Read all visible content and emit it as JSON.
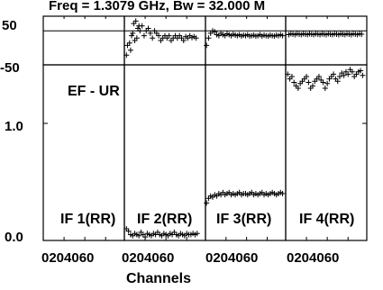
{
  "chart_data": {
    "type": "scatter",
    "title": "Freq = 1.3079 GHz, Bw = 32.000 M",
    "xlabel": "Channels",
    "top_panel": {
      "ylim": [
        -50,
        50
      ],
      "yticks": [
        "50",
        "-50"
      ],
      "reference_line": 20
    },
    "bottom_panel": {
      "label": "EF - UR",
      "ylim": [
        0.0,
        1.5
      ],
      "yticks": [
        "1.0",
        "0.0"
      ]
    },
    "xlim": [
      0,
      78
    ],
    "xtick_label": "0204060",
    "panels": [
      {
        "name": "IF 1(RR)",
        "phase": [],
        "amp": []
      },
      {
        "name": "IF 2(RR)",
        "phase": [
          [
            2,
            -30
          ],
          [
            5,
            -5
          ],
          [
            7,
            10
          ],
          [
            9,
            35
          ],
          [
            11,
            40
          ],
          [
            13,
            25
          ],
          [
            15,
            20
          ],
          [
            17,
            30
          ],
          [
            19,
            10
          ],
          [
            21,
            20
          ],
          [
            23,
            25
          ],
          [
            25,
            15
          ],
          [
            27,
            5
          ],
          [
            29,
            20
          ],
          [
            31,
            15
          ],
          [
            33,
            10
          ],
          [
            35,
            0
          ],
          [
            37,
            5
          ],
          [
            39,
            10
          ],
          [
            41,
            5
          ],
          [
            43,
            10
          ],
          [
            45,
            0
          ],
          [
            47,
            5
          ],
          [
            49,
            10
          ],
          [
            51,
            5
          ],
          [
            53,
            10
          ],
          [
            55,
            5
          ],
          [
            57,
            0
          ],
          [
            59,
            8
          ],
          [
            61,
            5
          ],
          [
            63,
            10
          ],
          [
            65,
            6
          ],
          [
            67,
            8
          ],
          [
            69,
            5
          ],
          [
            3,
            -10
          ],
          [
            6,
            -20
          ],
          [
            8,
            15
          ],
          [
            10,
            0
          ],
          [
            12,
            5
          ],
          [
            14,
            30
          ]
        ],
        "amp": [
          [
            2,
            0.1
          ],
          [
            4,
            0.08
          ],
          [
            6,
            0.05
          ],
          [
            8,
            0.04
          ],
          [
            10,
            0.06
          ],
          [
            12,
            0.05
          ],
          [
            14,
            0.04
          ],
          [
            16,
            0.07
          ],
          [
            18,
            0.05
          ],
          [
            20,
            0.03
          ],
          [
            22,
            0.06
          ],
          [
            24,
            0.05
          ],
          [
            26,
            0.04
          ],
          [
            28,
            0.06
          ],
          [
            30,
            0.05
          ],
          [
            32,
            0.07
          ],
          [
            34,
            0.05
          ],
          [
            36,
            0.04
          ],
          [
            38,
            0.06
          ],
          [
            40,
            0.05
          ],
          [
            42,
            0.04
          ],
          [
            44,
            0.06
          ],
          [
            46,
            0.05
          ],
          [
            48,
            0.07
          ],
          [
            50,
            0.05
          ],
          [
            52,
            0.04
          ],
          [
            54,
            0.06
          ],
          [
            56,
            0.05
          ],
          [
            58,
            0.04
          ],
          [
            60,
            0.06
          ],
          [
            62,
            0.05
          ],
          [
            64,
            0.05
          ],
          [
            66,
            0.06
          ],
          [
            68,
            0.05
          ],
          [
            70,
            0.06
          ]
        ]
      },
      {
        "name": "IF 3(RR)",
        "phase": [
          [
            1,
            -10
          ],
          [
            3,
            5
          ],
          [
            5,
            15
          ],
          [
            7,
            20
          ],
          [
            9,
            18
          ],
          [
            11,
            12
          ],
          [
            13,
            10
          ],
          [
            15,
            15
          ],
          [
            17,
            12
          ],
          [
            19,
            10
          ],
          [
            21,
            14
          ],
          [
            23,
            12
          ],
          [
            25,
            10
          ],
          [
            27,
            13
          ],
          [
            29,
            11
          ],
          [
            31,
            10
          ],
          [
            33,
            12
          ],
          [
            35,
            9
          ],
          [
            37,
            11
          ],
          [
            39,
            10
          ],
          [
            41,
            12
          ],
          [
            43,
            9
          ],
          [
            45,
            10
          ],
          [
            47,
            11
          ],
          [
            49,
            9
          ],
          [
            51,
            10
          ],
          [
            53,
            12
          ],
          [
            55,
            9
          ],
          [
            57,
            11
          ],
          [
            59,
            10
          ],
          [
            61,
            9
          ],
          [
            63,
            11
          ],
          [
            65,
            10
          ],
          [
            67,
            9
          ],
          [
            69,
            11
          ],
          [
            71,
            10
          ],
          [
            73,
            12
          ],
          [
            75,
            10
          ]
        ],
        "amp": [
          [
            1,
            0.32
          ],
          [
            3,
            0.36
          ],
          [
            5,
            0.38
          ],
          [
            7,
            0.37
          ],
          [
            9,
            0.39
          ],
          [
            11,
            0.38
          ],
          [
            13,
            0.4
          ],
          [
            15,
            0.39
          ],
          [
            17,
            0.41
          ],
          [
            19,
            0.39
          ],
          [
            21,
            0.4
          ],
          [
            23,
            0.41
          ],
          [
            25,
            0.39
          ],
          [
            27,
            0.4
          ],
          [
            29,
            0.39
          ],
          [
            31,
            0.4
          ],
          [
            33,
            0.41
          ],
          [
            35,
            0.39
          ],
          [
            37,
            0.4
          ],
          [
            39,
            0.4
          ],
          [
            41,
            0.39
          ],
          [
            43,
            0.4
          ],
          [
            45,
            0.41
          ],
          [
            47,
            0.39
          ],
          [
            49,
            0.4
          ],
          [
            51,
            0.39
          ],
          [
            53,
            0.4
          ],
          [
            55,
            0.41
          ],
          [
            57,
            0.39
          ],
          [
            59,
            0.4
          ],
          [
            61,
            0.39
          ],
          [
            63,
            0.4
          ],
          [
            65,
            0.41
          ],
          [
            67,
            0.4
          ],
          [
            69,
            0.39
          ],
          [
            71,
            0.4
          ],
          [
            73,
            0.41
          ],
          [
            75,
            0.4
          ]
        ]
      },
      {
        "name": "IF 4(RR)",
        "phase": [
          [
            3,
            12
          ],
          [
            5,
            14
          ],
          [
            7,
            13
          ],
          [
            9,
            12
          ],
          [
            11,
            14
          ],
          [
            13,
            13
          ],
          [
            15,
            12
          ],
          [
            17,
            14
          ],
          [
            19,
            13
          ],
          [
            21,
            12
          ],
          [
            23,
            14
          ],
          [
            25,
            13
          ],
          [
            27,
            12
          ],
          [
            29,
            14
          ],
          [
            31,
            13
          ],
          [
            33,
            12
          ],
          [
            35,
            14
          ],
          [
            37,
            13
          ],
          [
            39,
            12
          ],
          [
            41,
            14
          ],
          [
            43,
            13
          ],
          [
            45,
            12
          ],
          [
            47,
            14
          ],
          [
            49,
            13
          ],
          [
            51,
            12
          ],
          [
            53,
            14
          ],
          [
            55,
            13
          ],
          [
            57,
            12
          ],
          [
            59,
            14
          ],
          [
            61,
            13
          ],
          [
            63,
            12
          ],
          [
            65,
            14
          ],
          [
            67,
            13
          ],
          [
            69,
            12
          ],
          [
            71,
            14
          ],
          [
            73,
            13
          ]
        ],
        "amp": [
          [
            2,
            1.42
          ],
          [
            4,
            1.38
          ],
          [
            6,
            1.4
          ],
          [
            8,
            1.35
          ],
          [
            10,
            1.32
          ],
          [
            12,
            1.3
          ],
          [
            14,
            1.34
          ],
          [
            16,
            1.36
          ],
          [
            18,
            1.38
          ],
          [
            20,
            1.4
          ],
          [
            22,
            1.35
          ],
          [
            24,
            1.3
          ],
          [
            26,
            1.32
          ],
          [
            28,
            1.36
          ],
          [
            30,
            1.38
          ],
          [
            32,
            1.4
          ],
          [
            34,
            1.37
          ],
          [
            36,
            1.35
          ],
          [
            38,
            1.3
          ],
          [
            40,
            1.34
          ],
          [
            42,
            1.38
          ],
          [
            44,
            1.4
          ],
          [
            46,
            1.42
          ],
          [
            48,
            1.38
          ],
          [
            50,
            1.36
          ],
          [
            52,
            1.4
          ],
          [
            54,
            1.43
          ],
          [
            56,
            1.41
          ],
          [
            58,
            1.44
          ],
          [
            60,
            1.42
          ],
          [
            62,
            1.46
          ],
          [
            64,
            1.44
          ],
          [
            66,
            1.4
          ],
          [
            68,
            1.42
          ],
          [
            70,
            1.44
          ],
          [
            72,
            1.45
          ],
          [
            74,
            1.41
          ]
        ]
      }
    ]
  }
}
